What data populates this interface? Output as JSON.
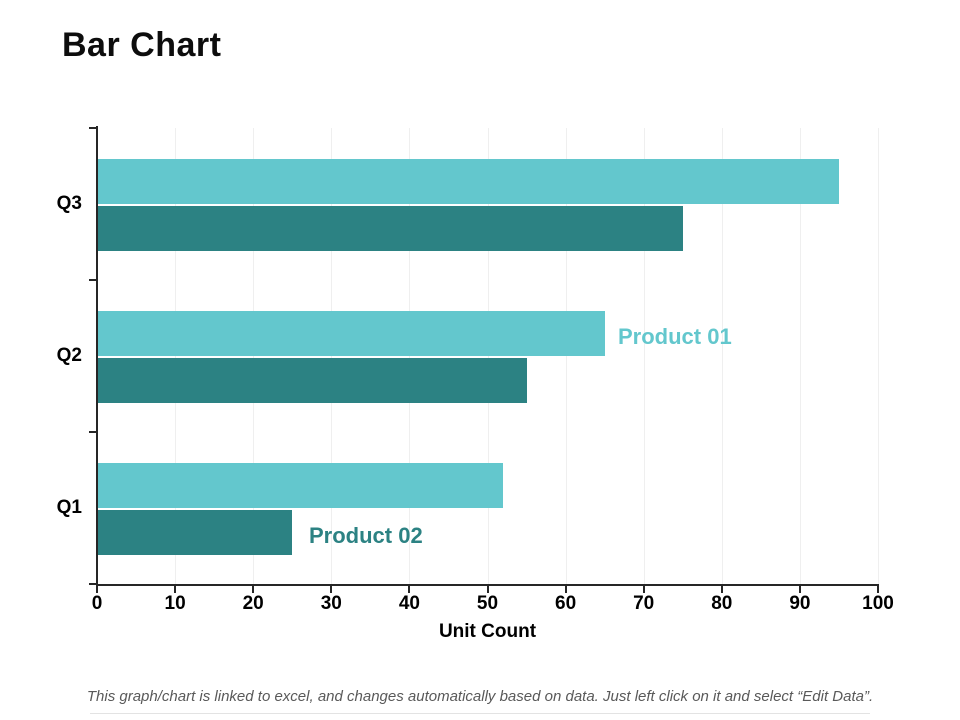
{
  "page": {
    "title": "Bar Chart",
    "footer_note": "This graph/chart is linked to excel, and changes automatically based on data.  Just left click on it and select “Edit Data”."
  },
  "colors": {
    "series1": "#63C7CD",
    "series2": "#2C8283",
    "axis": "#262626",
    "gridline": "#efefef",
    "footer_text": "#595959"
  },
  "chart_data": {
    "type": "bar",
    "orientation": "horizontal",
    "title": "Bar Chart",
    "xlabel": "Unit Count",
    "ylabel": "",
    "categories": [
      "Q1",
      "Q2",
      "Q3"
    ],
    "category_axis_reversed_display": true,
    "series": [
      {
        "name": "Product 01",
        "color": "#63C7CD",
        "values": [
          52,
          65,
          95
        ]
      },
      {
        "name": "Product 02",
        "color": "#2C8283",
        "values": [
          25,
          55,
          75
        ]
      }
    ],
    "xlim": [
      0,
      100
    ],
    "x_ticks": [
      0,
      10,
      20,
      30,
      40,
      50,
      60,
      70,
      80,
      90,
      100
    ],
    "grid": "vertical-light",
    "legend_position": "inline-annotations-next-to-bars"
  }
}
